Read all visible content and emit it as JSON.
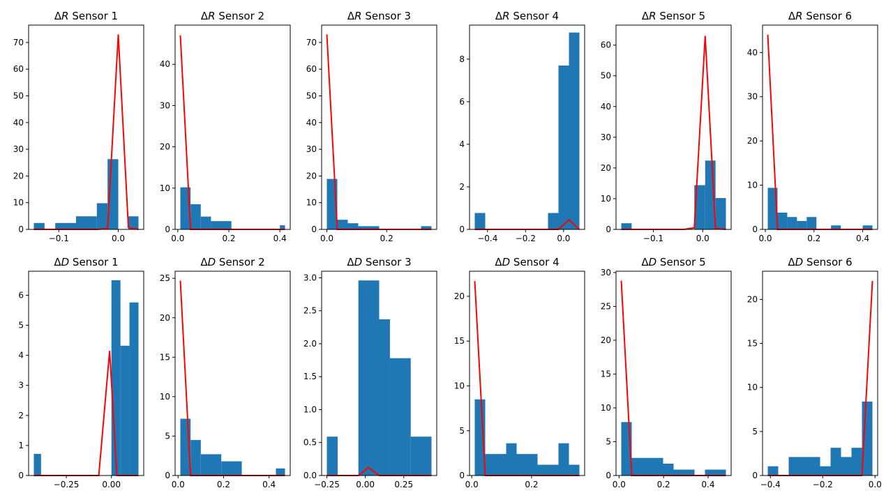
{
  "chart_data": [
    {
      "type": "bar",
      "title": "ΔR Sensor 1",
      "title_prefix": "Δ",
      "title_var": "R",
      "title_suffix": " Sensor 1",
      "xlim": [
        -0.142,
        0.034
      ],
      "ylim": [
        0,
        76.5
      ],
      "xticks": [
        -0.1,
        0.0
      ],
      "xtick_labels": [
        "−0.1",
        "0.0"
      ],
      "yticks": [
        0,
        10,
        20,
        30,
        40,
        50,
        60,
        70
      ],
      "ytick_labels": [
        "0",
        "10",
        "20",
        "30",
        "40",
        "50",
        "60",
        "70"
      ],
      "bins": [
        [
          -0.142,
          -0.124,
          2.4
        ],
        [
          -0.124,
          -0.106,
          0
        ],
        [
          -0.106,
          -0.071,
          2.4
        ],
        [
          -0.071,
          -0.036,
          4.9
        ],
        [
          -0.036,
          -0.018,
          9.8
        ],
        [
          -0.018,
          0.0,
          26.3
        ],
        [
          0.0,
          0.017,
          0
        ],
        [
          0.017,
          0.034,
          4.9
        ]
      ],
      "line": {
        "color": "#ff0000",
        "x": [
          -0.142,
          -0.124,
          -0.106,
          -0.089,
          -0.071,
          -0.053,
          -0.036,
          -0.018,
          0.0,
          0.017,
          0.034
        ],
        "y": [
          0,
          0,
          0,
          0,
          0,
          0,
          0,
          0.3,
          73,
          0.7,
          0
        ]
      }
    },
    {
      "type": "bar",
      "title": "ΔR Sensor 2",
      "title_prefix": "Δ",
      "title_var": "R",
      "title_suffix": " Sensor 2",
      "xlim": [
        0.01,
        0.42
      ],
      "ylim": [
        0,
        49.5
      ],
      "xticks": [
        0.0,
        0.2,
        0.4
      ],
      "xtick_labels": [
        "0.0",
        "0.2",
        "0.4"
      ],
      "yticks": [
        0,
        10,
        20,
        30,
        40
      ],
      "ytick_labels": [
        "0",
        "10",
        "20",
        "30",
        "40"
      ],
      "bins": [
        [
          0.01,
          0.05,
          10.2
        ],
        [
          0.05,
          0.09,
          6.1
        ],
        [
          0.09,
          0.13,
          3.1
        ],
        [
          0.13,
          0.21,
          2.0
        ],
        [
          0.21,
          0.4,
          0
        ],
        [
          0.4,
          0.42,
          1.0
        ]
      ],
      "line": {
        "color": "#ff0000",
        "x": [
          0.01,
          0.05,
          0.09,
          0.13,
          0.21,
          0.3,
          0.42
        ],
        "y": [
          47,
          0,
          0,
          0,
          0,
          0,
          0
        ]
      }
    },
    {
      "type": "bar",
      "title": "ΔR Sensor 3",
      "title_prefix": "Δ",
      "title_var": "R",
      "title_suffix": " Sensor 3",
      "xlim": [
        0.0,
        0.35
      ],
      "ylim": [
        0,
        76.5
      ],
      "xticks": [
        0.0,
        0.2
      ],
      "xtick_labels": [
        "0.0",
        "0.2"
      ],
      "yticks": [
        0,
        10,
        20,
        30,
        40,
        50,
        60,
        70
      ],
      "ytick_labels": [
        "0",
        "10",
        "20",
        "30",
        "40",
        "50",
        "60",
        "70"
      ],
      "bins": [
        [
          0.0,
          0.035,
          18.9
        ],
        [
          0.035,
          0.07,
          3.6
        ],
        [
          0.07,
          0.105,
          2.3
        ],
        [
          0.105,
          0.175,
          1.2
        ],
        [
          0.175,
          0.315,
          0
        ],
        [
          0.315,
          0.35,
          1.2
        ]
      ],
      "line": {
        "color": "#ff0000",
        "x": [
          0.0,
          0.035,
          0.07,
          0.105,
          0.175,
          0.26,
          0.35
        ],
        "y": [
          73,
          0,
          0,
          0,
          0,
          0,
          0
        ]
      }
    },
    {
      "type": "bar",
      "title": "ΔR Sensor 4",
      "title_prefix": "Δ",
      "title_var": "R",
      "title_suffix": " Sensor 4",
      "xlim": [
        -0.467,
        0.083
      ],
      "ylim": [
        0,
        9.6
      ],
      "xticks": [
        -0.4,
        -0.2,
        0.0
      ],
      "xtick_labels": [
        "−0.4",
        "−0.2",
        "0.0"
      ],
      "yticks": [
        0,
        2,
        4,
        6,
        8
      ],
      "ytick_labels": [
        "0",
        "2",
        "4",
        "6",
        "8"
      ],
      "bins": [
        [
          -0.467,
          -0.412,
          0.77
        ],
        [
          -0.412,
          -0.082,
          0
        ],
        [
          -0.082,
          -0.027,
          0.77
        ],
        [
          -0.027,
          0.028,
          7.7
        ],
        [
          0.028,
          0.083,
          9.25
        ]
      ],
      "line": {
        "color": "#ff0000",
        "x": [
          -0.467,
          -0.412,
          -0.357,
          -0.302,
          -0.247,
          -0.192,
          -0.137,
          -0.082,
          -0.027,
          0.028,
          0.083
        ],
        "y": [
          0,
          0,
          0,
          0,
          0,
          0,
          0,
          0,
          0,
          0.45,
          0
        ]
      }
    },
    {
      "type": "bar",
      "title": "ΔR Sensor 5",
      "title_prefix": "Δ",
      "title_var": "R",
      "title_suffix": " Sensor 5",
      "xlim": [
        -0.165,
        0.047
      ],
      "ylim": [
        0,
        66.5
      ],
      "xticks": [
        -0.1,
        0.0
      ],
      "xtick_labels": [
        "−0.1",
        "0.0"
      ],
      "yticks": [
        0,
        10,
        20,
        30,
        40,
        50,
        60
      ],
      "ytick_labels": [
        "0",
        "10",
        "20",
        "30",
        "40",
        "50",
        "60"
      ],
      "bins": [
        [
          -0.165,
          -0.144,
          2.0
        ],
        [
          -0.144,
          -0.017,
          0
        ],
        [
          -0.017,
          0.005,
          14.4
        ],
        [
          0.005,
          0.026,
          22.4
        ],
        [
          0.026,
          0.047,
          10.2
        ]
      ],
      "line": {
        "color": "#ff0000",
        "x": [
          -0.165,
          -0.144,
          -0.123,
          -0.102,
          -0.08,
          -0.059,
          -0.038,
          -0.017,
          0.005,
          0.026,
          0.047
        ],
        "y": [
          0,
          0,
          0,
          0,
          0,
          0,
          0,
          0.5,
          63,
          0.3,
          0
        ]
      }
    },
    {
      "type": "bar",
      "title": "ΔR Sensor 6",
      "title_prefix": "Δ",
      "title_var": "R",
      "title_suffix": " Sensor 6",
      "xlim": [
        0.01,
        0.44
      ],
      "ylim": [
        0,
        46.2
      ],
      "xticks": [
        0.0,
        0.2,
        0.4
      ],
      "xtick_labels": [
        "0.0",
        "0.2",
        "0.4"
      ],
      "yticks": [
        0,
        10,
        20,
        30,
        40
      ],
      "ytick_labels": [
        "0",
        "10",
        "20",
        "30",
        "40"
      ],
      "bins": [
        [
          0.01,
          0.05,
          9.4
        ],
        [
          0.05,
          0.09,
          3.8
        ],
        [
          0.09,
          0.13,
          2.8
        ],
        [
          0.13,
          0.17,
          1.9
        ],
        [
          0.17,
          0.21,
          2.8
        ],
        [
          0.21,
          0.27,
          0
        ],
        [
          0.27,
          0.31,
          0.9
        ],
        [
          0.31,
          0.4,
          0
        ],
        [
          0.4,
          0.44,
          0.9
        ]
      ],
      "line": {
        "color": "#ff0000",
        "x": [
          0.01,
          0.05,
          0.09,
          0.13,
          0.17,
          0.21,
          0.3,
          0.44
        ],
        "y": [
          44,
          0,
          0,
          0,
          0,
          0,
          0,
          0
        ]
      }
    },
    {
      "type": "bar",
      "title": "ΔD Sensor 1",
      "title_prefix": "Δ",
      "title_var": "D",
      "title_suffix": " Sensor 1",
      "xlim": [
        -0.43,
        0.15
      ],
      "ylim": [
        0,
        6.8
      ],
      "xticks": [
        -0.25,
        0.0
      ],
      "xtick_labels": [
        "−0.25",
        "0.00"
      ],
      "yticks": [
        0,
        1,
        2,
        3,
        4,
        5,
        6
      ],
      "ytick_labels": [
        "0",
        "1",
        "2",
        "3",
        "4",
        "5",
        "6"
      ],
      "bins": [
        [
          -0.43,
          -0.39,
          0.72
        ],
        [
          -0.39,
          0.0,
          0
        ],
        [
          0.0,
          0.05,
          6.5
        ],
        [
          0.05,
          0.1,
          4.32
        ],
        [
          0.1,
          0.15,
          5.76
        ]
      ],
      "line": {
        "color": "#ff0000",
        "x": [
          -0.43,
          -0.37,
          -0.31,
          -0.25,
          -0.19,
          -0.13,
          -0.07,
          -0.01,
          0.03,
          0.09,
          0.15
        ],
        "y": [
          0,
          0,
          0,
          0,
          0,
          0,
          0,
          4.15,
          0,
          0,
          0
        ]
      }
    },
    {
      "type": "bar",
      "title": "ΔD Sensor 2",
      "title_prefix": "Δ",
      "title_var": "D",
      "title_suffix": " Sensor 2",
      "xlim": [
        0.01,
        0.47
      ],
      "ylim": [
        0,
        25.9
      ],
      "xticks": [
        0.0,
        0.2,
        0.4
      ],
      "xtick_labels": [
        "0.0",
        "0.2",
        "0.4"
      ],
      "yticks": [
        0,
        5,
        10,
        15,
        20,
        25
      ],
      "ytick_labels": [
        "0",
        "5",
        "10",
        "15",
        "20",
        "25"
      ],
      "bins": [
        [
          0.01,
          0.055,
          7.2
        ],
        [
          0.055,
          0.1,
          4.5
        ],
        [
          0.1,
          0.19,
          2.7
        ],
        [
          0.19,
          0.28,
          1.8
        ],
        [
          0.28,
          0.43,
          0
        ],
        [
          0.43,
          0.47,
          0.9
        ]
      ],
      "line": {
        "color": "#ff0000",
        "x": [
          0.01,
          0.055,
          0.1,
          0.19,
          0.28,
          0.37,
          0.47
        ],
        "y": [
          24.7,
          0,
          0,
          0,
          0,
          0,
          0
        ]
      }
    },
    {
      "type": "bar",
      "title": "ΔD Sensor 3",
      "title_prefix": "Δ",
      "title_var": "D",
      "title_suffix": " Sensor 3",
      "xlim": [
        -0.25,
        0.43
      ],
      "ylim": [
        0,
        3.1
      ],
      "xticks": [
        -0.25,
        0.0,
        0.25
      ],
      "xtick_labels": [
        "−0.25",
        "0.00",
        "0.25"
      ],
      "yticks": [
        0,
        0.5,
        1.0,
        1.5,
        2.0,
        2.5,
        3.0
      ],
      "ytick_labels": [
        "0.0",
        "0.5",
        "1.0",
        "1.5",
        "2.0",
        "2.5",
        "3.0"
      ],
      "bins": [
        [
          -0.25,
          -0.18,
          0.59
        ],
        [
          -0.18,
          -0.045,
          0
        ],
        [
          -0.045,
          0.09,
          2.96
        ],
        [
          0.09,
          0.16,
          2.37
        ],
        [
          0.16,
          0.295,
          1.78
        ],
        [
          0.295,
          0.43,
          0.59
        ]
      ],
      "line": {
        "color": "#ff0000",
        "x": [
          -0.25,
          -0.18,
          -0.115,
          -0.045,
          0.02,
          0.09,
          0.16,
          0.225,
          0.295,
          0.36,
          0.43
        ],
        "y": [
          0,
          0,
          0,
          0,
          0.12,
          0,
          0,
          0,
          0,
          0,
          0
        ]
      }
    },
    {
      "type": "bar",
      "title": "ΔD Sensor 4",
      "title_prefix": "Δ",
      "title_var": "D",
      "title_suffix": " Sensor 4",
      "xlim": [
        0.01,
        0.36
      ],
      "ylim": [
        0,
        22.8
      ],
      "xticks": [
        0.0,
        0.2
      ],
      "xtick_labels": [
        "0.0",
        "0.2"
      ],
      "yticks": [
        0,
        5,
        10,
        15,
        20
      ],
      "ytick_labels": [
        "0",
        "5",
        "10",
        "15",
        "20"
      ],
      "bins": [
        [
          0.01,
          0.045,
          8.5
        ],
        [
          0.045,
          0.115,
          2.4
        ],
        [
          0.115,
          0.15,
          3.6
        ],
        [
          0.15,
          0.22,
          2.4
        ],
        [
          0.22,
          0.29,
          1.2
        ],
        [
          0.29,
          0.325,
          3.6
        ],
        [
          0.325,
          0.36,
          1.2
        ]
      ],
      "line": {
        "color": "#ff0000",
        "x": [
          0.01,
          0.045,
          0.08,
          0.115,
          0.15,
          0.22,
          0.29,
          0.36
        ],
        "y": [
          21.7,
          0,
          0,
          0,
          0,
          0,
          0,
          0
        ]
      }
    },
    {
      "type": "bar",
      "title": "ΔD Sensor 5",
      "title_prefix": "Δ",
      "title_var": "D",
      "title_suffix": " Sensor 5",
      "xlim": [
        0.01,
        0.48
      ],
      "ylim": [
        0,
        30.2
      ],
      "xticks": [
        0.0,
        0.2,
        0.4
      ],
      "xtick_labels": [
        "0.0",
        "0.2",
        "0.4"
      ],
      "yticks": [
        0,
        5,
        10,
        15,
        20,
        25,
        30
      ],
      "ytick_labels": [
        "0",
        "5",
        "10",
        "15",
        "20",
        "25",
        "30"
      ],
      "bins": [
        [
          0.01,
          0.057,
          7.9
        ],
        [
          0.057,
          0.198,
          2.6
        ],
        [
          0.198,
          0.245,
          1.75
        ],
        [
          0.245,
          0.339,
          0.87
        ],
        [
          0.339,
          0.386,
          0
        ],
        [
          0.386,
          0.48,
          0.87
        ]
      ],
      "line": {
        "color": "#ff0000",
        "x": [
          0.01,
          0.057,
          0.104,
          0.198,
          0.292,
          0.386,
          0.48
        ],
        "y": [
          28.8,
          0,
          0,
          0,
          0,
          0,
          0
        ]
      }
    },
    {
      "type": "bar",
      "title": "ΔD Sensor 6",
      "title_prefix": "Δ",
      "title_var": "D",
      "title_suffix": " Sensor 6",
      "xlim": [
        -0.41,
        -0.01
      ],
      "ylim": [
        0,
        23.2
      ],
      "xticks": [
        -0.4,
        -0.2,
        0.0
      ],
      "xtick_labels": [
        "−0.4",
        "−0.2",
        "0.0"
      ],
      "yticks": [
        0,
        5,
        10,
        15,
        20
      ],
      "ytick_labels": [
        "0",
        "5",
        "10",
        "15",
        "20"
      ],
      "bins": [
        [
          -0.41,
          -0.37,
          1.05
        ],
        [
          -0.37,
          -0.33,
          0
        ],
        [
          -0.33,
          -0.21,
          2.1
        ],
        [
          -0.21,
          -0.17,
          1.05
        ],
        [
          -0.17,
          -0.13,
          3.15
        ],
        [
          -0.13,
          -0.09,
          2.1
        ],
        [
          -0.09,
          -0.05,
          3.15
        ],
        [
          -0.05,
          -0.01,
          8.4
        ]
      ],
      "line": {
        "color": "#ff0000",
        "x": [
          -0.41,
          -0.33,
          -0.25,
          -0.17,
          -0.09,
          -0.05,
          -0.01
        ],
        "y": [
          0,
          0,
          0,
          0,
          0,
          0,
          22.1
        ]
      }
    }
  ],
  "colors": {
    "bar": "#1f77b4",
    "line": "#ff0000",
    "axis": "#000000"
  }
}
